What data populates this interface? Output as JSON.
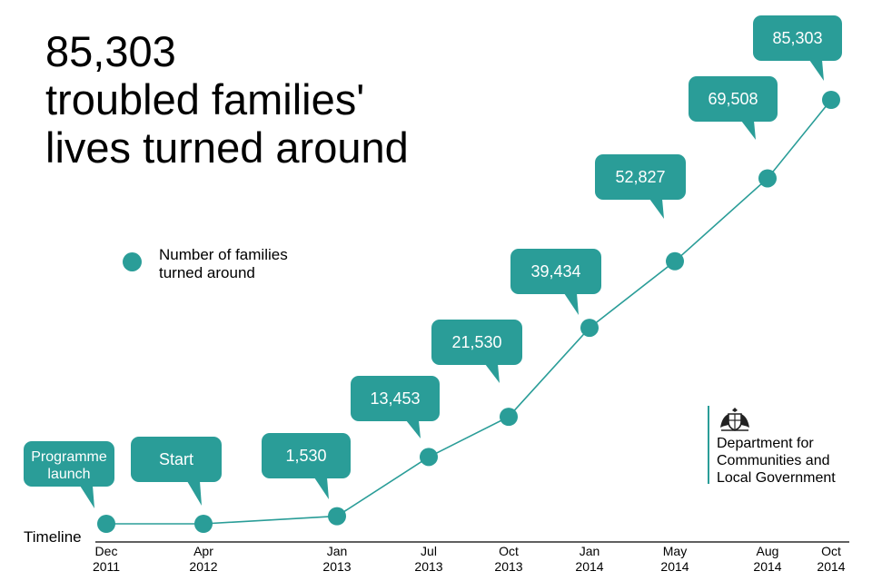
{
  "headline": {
    "line1": "85,303",
    "line2": "troubled families'",
    "line3": "lives turned around"
  },
  "legend": {
    "label": "Number of families turned around"
  },
  "logo": {
    "line1": "Department for",
    "line2": "Communities and",
    "line3": "Local Government"
  },
  "colors": {
    "teal": "#2a9d98",
    "axis": "#000000"
  },
  "chart_data": {
    "type": "line",
    "xlabel": "Timeline",
    "ylabel": "",
    "grid": false,
    "legend_position": "center-left",
    "points": [
      {
        "tick1": "Dec",
        "tick2": "2011",
        "date": "2011-12",
        "value": 0,
        "label": "Programme launch"
      },
      {
        "tick1": "Apr",
        "tick2": "2012",
        "date": "2012-04",
        "value": 0,
        "label": "Start"
      },
      {
        "tick1": "Jan",
        "tick2": "2013",
        "date": "2013-01",
        "value": 1530,
        "label": "1,530"
      },
      {
        "tick1": "Jul",
        "tick2": "2013",
        "date": "2013-07",
        "value": 13453,
        "label": "13,453"
      },
      {
        "tick1": "Oct",
        "tick2": "2013",
        "date": "2013-10",
        "value": 21530,
        "label": "21,530"
      },
      {
        "tick1": "Jan",
        "tick2": "2014",
        "date": "2014-01",
        "value": 39434,
        "label": "39,434"
      },
      {
        "tick1": "May",
        "tick2": "2014",
        "date": "2014-05",
        "value": 52827,
        "label": "52,827"
      },
      {
        "tick1": "Aug",
        "tick2": "2014",
        "date": "2014-08",
        "value": 69508,
        "label": "69,508"
      },
      {
        "tick1": "Oct",
        "tick2": "2014",
        "date": "2014-10",
        "value": 85303,
        "label": "85,303"
      }
    ]
  }
}
